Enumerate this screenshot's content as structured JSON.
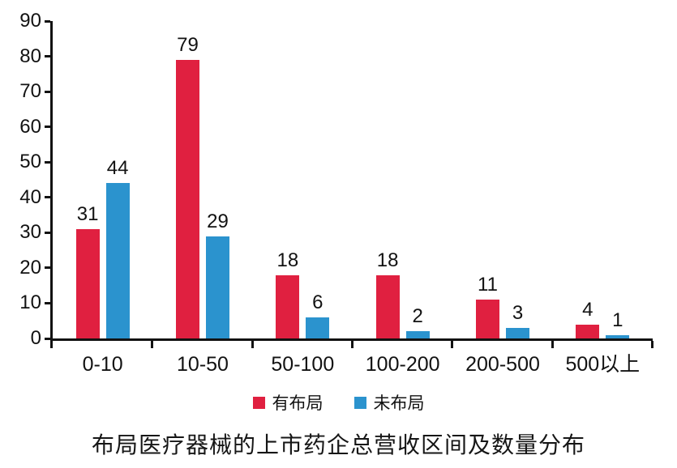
{
  "chart_data": {
    "type": "bar",
    "title": "布局医疗器械的上市药企总营收区间及数量分布",
    "categories": [
      "0-10",
      "10-50",
      "50-100",
      "100-200",
      "200-500",
      "500以上"
    ],
    "series": [
      {
        "name": "有布局",
        "color": "#E02040",
        "values": [
          31,
          79,
          18,
          18,
          11,
          4
        ]
      },
      {
        "name": "未布局",
        "color": "#2B93CE",
        "values": [
          44,
          29,
          6,
          2,
          3,
          1
        ]
      }
    ],
    "xlabel": "",
    "ylabel": "",
    "ylim": [
      0,
      90
    ],
    "y_ticks": [
      0,
      10,
      20,
      30,
      40,
      50,
      60,
      70,
      80,
      90
    ],
    "grid": false,
    "data_labels": true,
    "legend_position": "bottom",
    "axis_color": "#121212",
    "text_color": "#121212"
  }
}
